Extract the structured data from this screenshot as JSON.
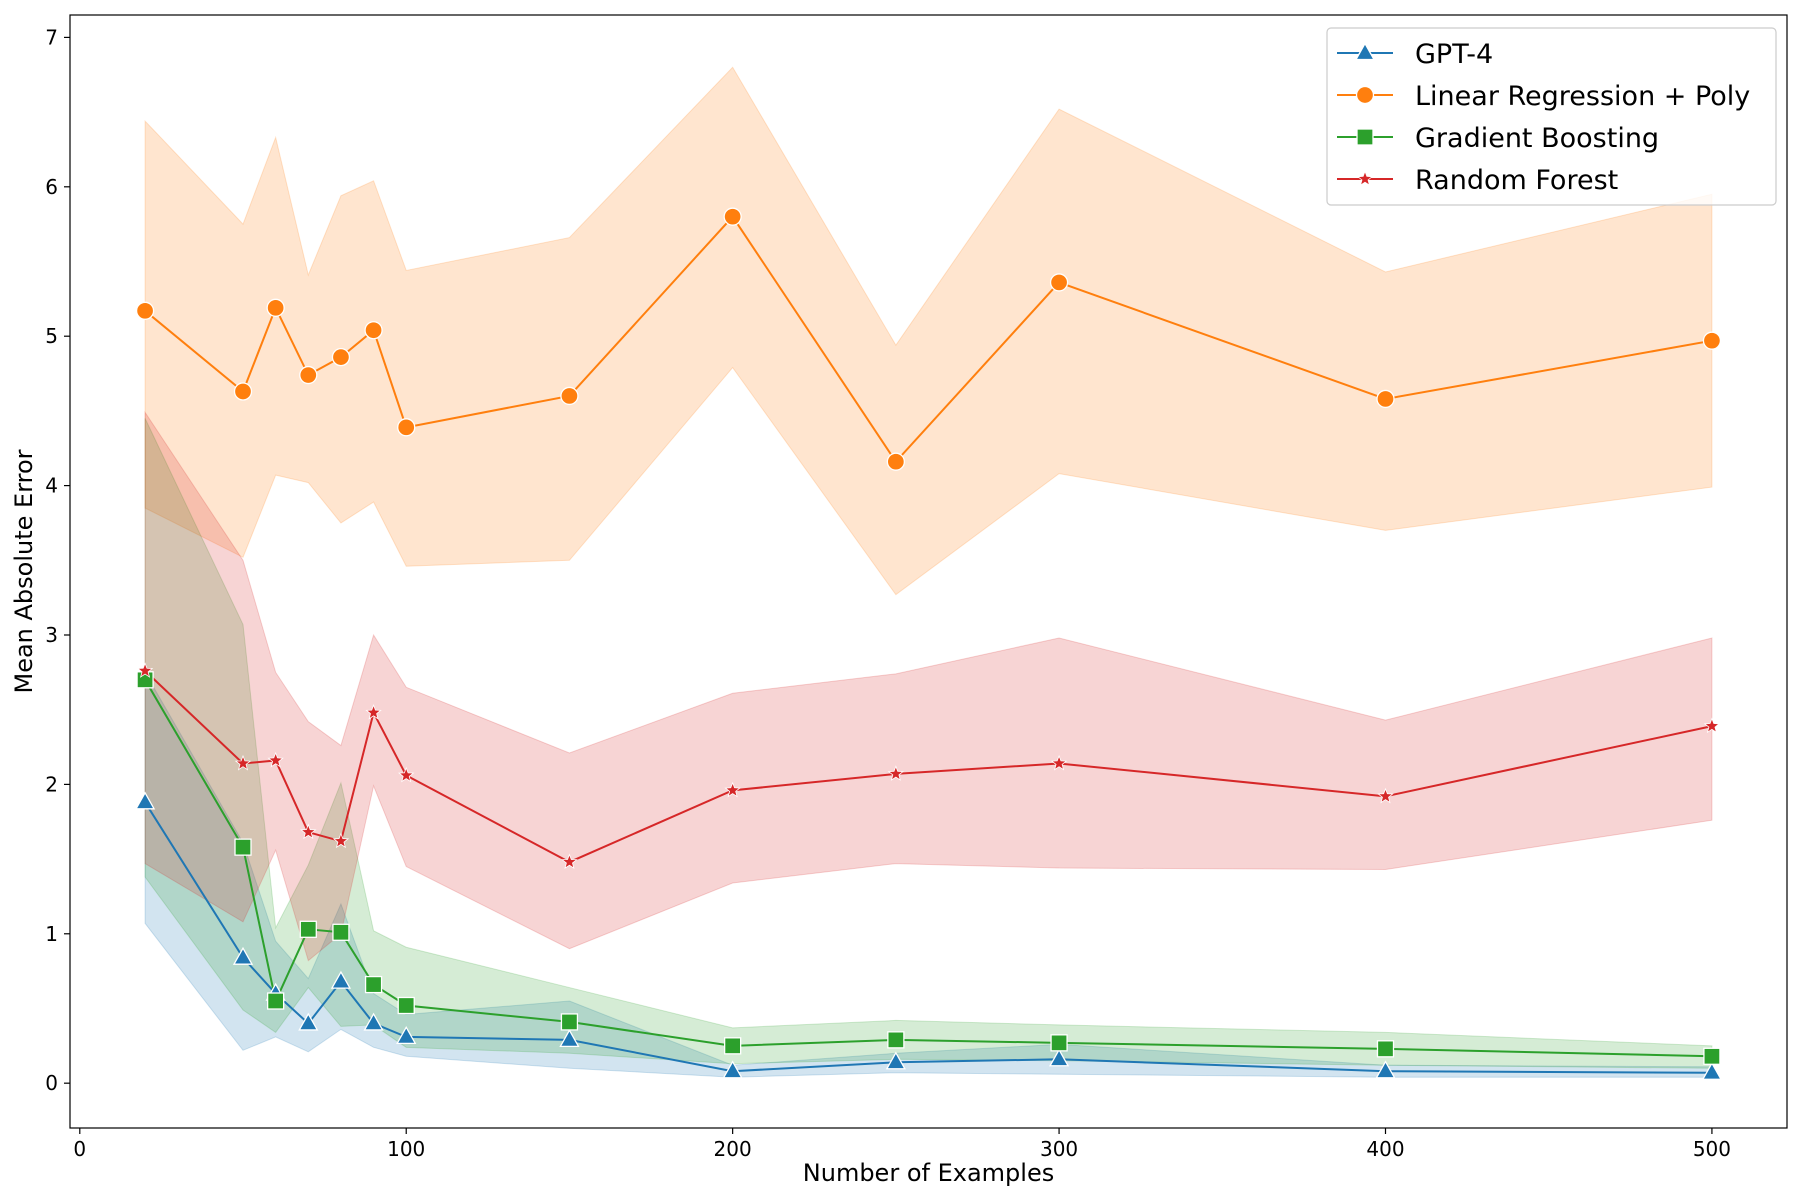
{
  "chart_data": {
    "type": "line",
    "title": "",
    "xlabel": "Number of Examples",
    "ylabel": "Mean Absolute Error",
    "xlim": [
      -3,
      523
    ],
    "ylim": [
      -0.3,
      7.15
    ],
    "xticks": [
      0,
      100,
      200,
      300,
      400,
      500
    ],
    "yticks": [
      0,
      1,
      2,
      3,
      4,
      5,
      6,
      7
    ],
    "grid": false,
    "legend": "top-right",
    "x": [
      20,
      50,
      60,
      70,
      80,
      90,
      100,
      150,
      200,
      250,
      300,
      400,
      500
    ],
    "series": [
      {
        "name": "GPT-4",
        "color": "#1f77b4",
        "marker": "triangle",
        "values": [
          1.88,
          0.84,
          0.6,
          0.4,
          0.68,
          0.4,
          0.31,
          0.29,
          0.08,
          0.14,
          0.16,
          0.08,
          0.07
        ],
        "lower": [
          1.07,
          0.22,
          0.31,
          0.21,
          0.36,
          0.24,
          0.18,
          0.1,
          0.04,
          0.07,
          0.06,
          0.04,
          0.04
        ],
        "upper": [
          2.75,
          1.61,
          0.95,
          0.7,
          1.2,
          0.6,
          0.46,
          0.55,
          0.12,
          0.2,
          0.26,
          0.12,
          0.11
        ]
      },
      {
        "name": "Linear Regression + Poly",
        "color": "#ff7f0e",
        "marker": "circle",
        "values": [
          5.17,
          4.63,
          5.19,
          4.74,
          4.86,
          5.04,
          4.39,
          4.6,
          5.8,
          4.16,
          5.36,
          4.58,
          4.97
        ],
        "lower": [
          3.85,
          3.52,
          4.07,
          4.02,
          3.75,
          3.89,
          3.46,
          3.5,
          4.79,
          3.27,
          4.08,
          3.7,
          3.99
        ],
        "upper": [
          6.44,
          5.75,
          6.33,
          5.41,
          5.94,
          6.04,
          5.44,
          5.66,
          6.8,
          4.94,
          6.52,
          5.43,
          5.95
        ]
      },
      {
        "name": "Gradient Boosting",
        "color": "#2ca02c",
        "marker": "square",
        "values": [
          2.7,
          1.58,
          0.55,
          1.03,
          1.01,
          0.66,
          0.52,
          0.41,
          0.25,
          0.29,
          0.27,
          0.23,
          0.18
        ],
        "lower": [
          1.38,
          0.49,
          0.34,
          0.64,
          0.38,
          0.39,
          0.24,
          0.2,
          0.13,
          0.16,
          0.15,
          0.12,
          0.1
        ],
        "upper": [
          4.45,
          3.07,
          1.04,
          1.46,
          2.01,
          1.02,
          0.91,
          0.64,
          0.37,
          0.42,
          0.39,
          0.34,
          0.25
        ]
      },
      {
        "name": "Random Forest",
        "color": "#d62728",
        "marker": "star",
        "values": [
          2.76,
          2.14,
          2.16,
          1.68,
          1.62,
          2.48,
          2.06,
          1.48,
          1.96,
          2.07,
          2.14,
          1.92,
          2.39
        ],
        "lower": [
          1.47,
          1.08,
          1.56,
          0.82,
          1.0,
          1.99,
          1.45,
          0.9,
          1.34,
          1.47,
          1.44,
          1.43,
          1.76
        ],
        "upper": [
          4.49,
          3.5,
          2.75,
          2.42,
          2.26,
          3.0,
          2.65,
          2.21,
          2.61,
          2.74,
          2.98,
          2.43,
          2.98
        ]
      }
    ]
  }
}
